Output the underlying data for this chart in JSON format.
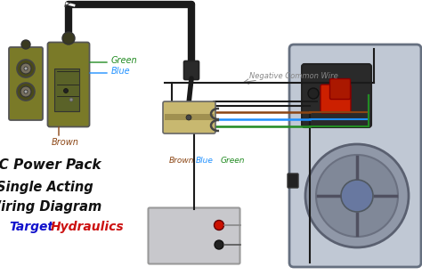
{
  "bg_color": "#ffffff",
  "wire_colors": {
    "brown": "#8B4513",
    "blue": "#1E90FF",
    "green": "#228B22",
    "black": "#111111",
    "dark": "#1a1a1a",
    "neg_wire": "#555555"
  },
  "label_color": "#888888",
  "olive": "#7a7a28",
  "gray_unit": "#b8bec8",
  "gray_unit_dark": "#8890a0",
  "gray_box": "#c8c8cc",
  "negative_wire_label": "Negative Common Wire",
  "brand_color_target": "#1111cc",
  "brand_color_hydraulics": "#cc1111",
  "text_labels": {
    "Green_remote": "Green",
    "Blue_remote": "Blue",
    "Brown_remote": "Brown",
    "Brown_conn": "Brown",
    "Blue_conn": "Blue",
    "Green_conn": "Green",
    "dc_power": "DC Power Pack",
    "single": "Single Acting",
    "wiring": "Wiring Diagram",
    "target": "Target",
    "hydraulics": "Hydraulics"
  }
}
